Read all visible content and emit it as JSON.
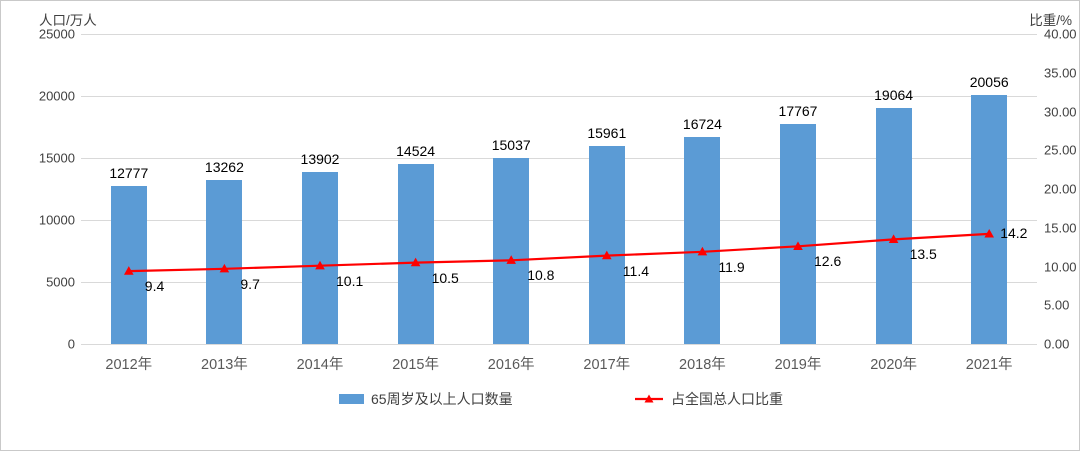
{
  "chart_data": {
    "type": "bar",
    "title": "",
    "categories": [
      "2012年",
      "2013年",
      "2014年",
      "2015年",
      "2016年",
      "2017年",
      "2018年",
      "2019年",
      "2020年",
      "2021年"
    ],
    "series": [
      {
        "name": "65周岁及以上人口数量",
        "type": "bar",
        "axis": "left",
        "color": "#5B9BD5",
        "values": [
          12777,
          13262,
          13902,
          14524,
          15037,
          15961,
          16724,
          17767,
          19064,
          20056
        ]
      },
      {
        "name": "占全国总人口比重",
        "type": "line",
        "axis": "right",
        "color": "#FF0000",
        "marker": "triangle",
        "values": [
          9.4,
          9.7,
          10.1,
          10.5,
          10.8,
          11.4,
          11.9,
          12.6,
          13.5,
          14.2
        ]
      }
    ],
    "left_axis": {
      "title": "人口/万人",
      "min": 0,
      "max": 25000,
      "step": 5000,
      "tick_labels": [
        "25000",
        "20000",
        "15000",
        "10000",
        "5000",
        "0"
      ]
    },
    "right_axis": {
      "title": "比重/%",
      "min": 0,
      "max": 40,
      "step": 5,
      "tick_labels": [
        "40.00",
        "35.00",
        "30.00",
        "25.00",
        "20.00",
        "15.00",
        "10.00",
        "5.00",
        "0.00"
      ]
    },
    "grid": true,
    "legend_position": "bottom"
  },
  "colors": {
    "bar": "#5B9BD5",
    "line": "#FF0000",
    "gridline": "#D9D9D9",
    "axis_text": "#404040",
    "category_text": "#595959",
    "data_label": "#000000",
    "background": "#FFFFFF",
    "frame_border": "#C9C9C9"
  }
}
